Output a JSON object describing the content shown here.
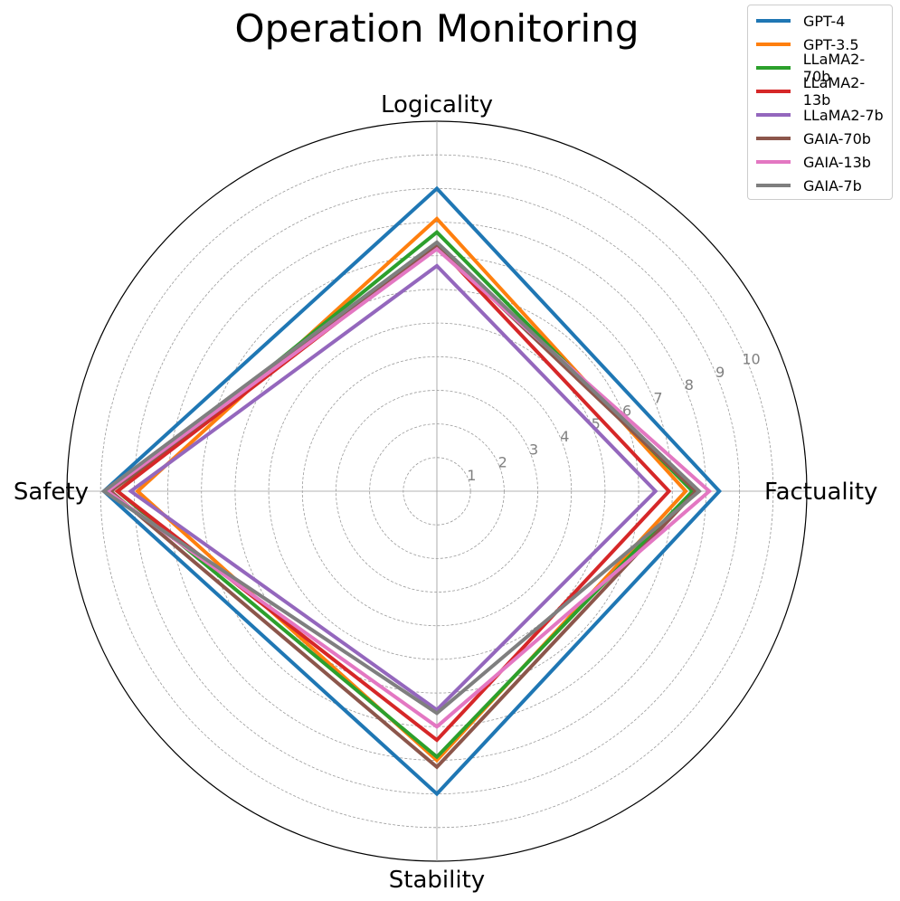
{
  "chart_data": {
    "type": "radar",
    "title": "Operation Monitoring",
    "axes": [
      "Factuality",
      "Logicality",
      "Safety",
      "Stability"
    ],
    "r_ticks": [
      "1",
      "2",
      "3",
      "4",
      "5",
      "6",
      "7",
      "8",
      "9",
      "10"
    ],
    "rlim": [
      0,
      11
    ],
    "grid": true,
    "legend_position": "top-right",
    "series": [
      {
        "name": "GPT-4",
        "color": "#1f77b4",
        "values": [
          8.4,
          9.0,
          9.9,
          9.0
        ]
      },
      {
        "name": "GPT-3.5",
        "color": "#ff7f0e",
        "values": [
          7.4,
          8.1,
          8.9,
          8.0
        ]
      },
      {
        "name": "LLaMA2-70b",
        "color": "#2ca02c",
        "values": [
          7.6,
          7.7,
          9.5,
          7.9
        ]
      },
      {
        "name": "LLaMA2-13b",
        "color": "#d62728",
        "values": [
          6.9,
          7.3,
          9.5,
          7.4
        ]
      },
      {
        "name": "LLaMA2-7b",
        "color": "#9467bd",
        "values": [
          6.5,
          6.7,
          9.1,
          6.5
        ]
      },
      {
        "name": "GAIA-70b",
        "color": "#8c564b",
        "values": [
          7.7,
          7.3,
          9.7,
          8.2
        ]
      },
      {
        "name": "GAIA-13b",
        "color": "#e377c2",
        "values": [
          8.1,
          7.2,
          9.8,
          7.0
        ]
      },
      {
        "name": "GAIA-7b",
        "color": "#7f7f7f",
        "values": [
          7.8,
          7.4,
          9.9,
          6.6
        ]
      }
    ]
  }
}
